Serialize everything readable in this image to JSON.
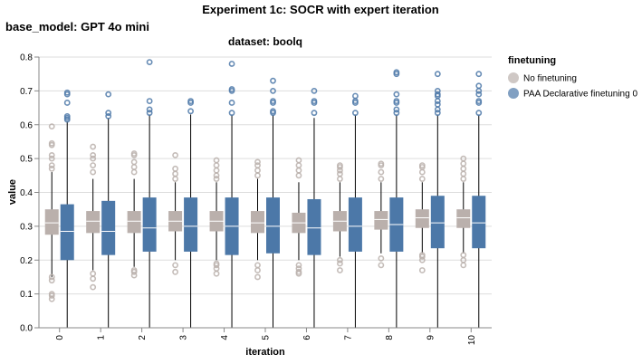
{
  "chart_data": {
    "type": "box",
    "title": "Experiment 1c: SOCR with expert iteration",
    "row_facet_label": "base_model: GPT 4o mini",
    "column_facet_label": "dataset: boolq",
    "xlabel": "iteration",
    "ylabel": "value",
    "ylim": [
      0,
      0.8
    ],
    "y_ticks": [
      "0.0",
      "0.1",
      "0.2",
      "0.3",
      "0.4",
      "0.5",
      "0.6",
      "0.7",
      "0.8"
    ],
    "grid": true,
    "legend_title": "finetuning",
    "legend_position": "right",
    "categories": [
      "0",
      "1",
      "2",
      "3",
      "4",
      "5",
      "6",
      "7",
      "8",
      "9",
      "10"
    ],
    "series": [
      {
        "name": "No finetuning",
        "color": "#bab0ac",
        "boxes": [
          {
            "min": 0.15,
            "q1": 0.275,
            "median": 0.31,
            "q3": 0.35,
            "max": 0.46,
            "outliers": [
              0.085,
              0.095,
              0.1,
              0.14,
              0.15,
              0.47,
              0.48,
              0.5,
              0.51,
              0.54,
              0.545,
              0.595
            ]
          },
          {
            "min": 0.17,
            "q1": 0.28,
            "median": 0.315,
            "q3": 0.345,
            "max": 0.44,
            "outliers": [
              0.12,
              0.145,
              0.16,
              0.46,
              0.48,
              0.5,
              0.51,
              0.535
            ]
          },
          {
            "min": 0.18,
            "q1": 0.28,
            "median": 0.315,
            "q3": 0.345,
            "max": 0.44,
            "outliers": [
              0.155,
              0.165,
              0.17,
              0.46,
              0.475,
              0.49,
              0.51,
              0.515
            ]
          },
          {
            "min": 0.2,
            "q1": 0.285,
            "median": 0.315,
            "q3": 0.345,
            "max": 0.43,
            "outliers": [
              0.165,
              0.185,
              0.44,
              0.455,
              0.47,
              0.51
            ]
          },
          {
            "min": 0.2,
            "q1": 0.285,
            "median": 0.315,
            "q3": 0.345,
            "max": 0.43,
            "outliers": [
              0.16,
              0.175,
              0.185,
              0.19,
              0.44,
              0.45,
              0.465,
              0.48,
              0.495
            ]
          },
          {
            "min": 0.2,
            "q1": 0.28,
            "median": 0.31,
            "q3": 0.345,
            "max": 0.44,
            "outliers": [
              0.15,
              0.17,
              0.185,
              0.45,
              0.465,
              0.48,
              0.49
            ]
          },
          {
            "min": 0.2,
            "q1": 0.28,
            "median": 0.31,
            "q3": 0.34,
            "max": 0.43,
            "outliers": [
              0.16,
              0.165,
              0.175,
              0.185,
              0.45,
              0.465,
              0.48,
              0.495
            ]
          },
          {
            "min": 0.21,
            "q1": 0.285,
            "median": 0.315,
            "q3": 0.345,
            "max": 0.43,
            "outliers": [
              0.17,
              0.19,
              0.2,
              0.44,
              0.455,
              0.465,
              0.475,
              0.48
            ]
          },
          {
            "min": 0.22,
            "q1": 0.29,
            "median": 0.32,
            "q3": 0.345,
            "max": 0.43,
            "outliers": [
              0.185,
              0.205,
              0.44,
              0.46,
              0.48,
              0.485
            ]
          },
          {
            "min": 0.22,
            "q1": 0.295,
            "median": 0.325,
            "q3": 0.35,
            "max": 0.43,
            "outliers": [
              0.17,
              0.2,
              0.21,
              0.215,
              0.44,
              0.46,
              0.475,
              0.48
            ]
          },
          {
            "min": 0.22,
            "q1": 0.295,
            "median": 0.325,
            "q3": 0.35,
            "max": 0.43,
            "outliers": [
              0.185,
              0.2,
              0.215,
              0.44,
              0.455,
              0.47,
              0.485,
              0.5
            ]
          }
        ]
      },
      {
        "name": "PAA Declarative finetuning 0",
        "color": "#4c78a8",
        "boxes": [
          {
            "min": 0.0,
            "q1": 0.2,
            "median": 0.285,
            "q3": 0.365,
            "max": 0.61,
            "outliers": [
              0.615,
              0.62,
              0.625,
              0.665,
              0.69,
              0.695
            ]
          },
          {
            "min": 0.0,
            "q1": 0.215,
            "median": 0.285,
            "q3": 0.375,
            "max": 0.62,
            "outliers": [
              0.625,
              0.635,
              0.69
            ]
          },
          {
            "min": 0.0,
            "q1": 0.225,
            "median": 0.295,
            "q3": 0.385,
            "max": 0.63,
            "outliers": [
              0.635,
              0.645,
              0.67,
              0.785
            ]
          },
          {
            "min": 0.0,
            "q1": 0.225,
            "median": 0.3,
            "q3": 0.385,
            "max": 0.63,
            "outliers": [
              0.64,
              0.665,
              0.67
            ]
          },
          {
            "min": 0.0,
            "q1": 0.215,
            "median": 0.3,
            "q3": 0.385,
            "max": 0.63,
            "outliers": [
              0.635,
              0.665,
              0.7,
              0.705,
              0.78
            ]
          },
          {
            "min": 0.0,
            "q1": 0.22,
            "median": 0.3,
            "q3": 0.385,
            "max": 0.63,
            "outliers": [
              0.635,
              0.64,
              0.665,
              0.67,
              0.7,
              0.73
            ]
          },
          {
            "min": 0.0,
            "q1": 0.215,
            "median": 0.295,
            "q3": 0.38,
            "max": 0.62,
            "outliers": [
              0.635,
              0.665,
              0.67,
              0.7
            ]
          },
          {
            "min": 0.0,
            "q1": 0.225,
            "median": 0.3,
            "q3": 0.385,
            "max": 0.63,
            "outliers": [
              0.635,
              0.665,
              0.67,
              0.685
            ]
          },
          {
            "min": 0.0,
            "q1": 0.225,
            "median": 0.305,
            "q3": 0.385,
            "max": 0.63,
            "outliers": [
              0.635,
              0.645,
              0.665,
              0.67,
              0.69,
              0.75,
              0.755
            ]
          },
          {
            "min": 0.0,
            "q1": 0.235,
            "median": 0.31,
            "q3": 0.39,
            "max": 0.63,
            "outliers": [
              0.635,
              0.645,
              0.66,
              0.67,
              0.685,
              0.69,
              0.7,
              0.75
            ]
          },
          {
            "min": 0.0,
            "q1": 0.235,
            "median": 0.31,
            "q3": 0.39,
            "max": 0.63,
            "outliers": [
              0.635,
              0.665,
              0.67,
              0.69,
              0.7,
              0.715,
              0.75
            ]
          }
        ]
      }
    ]
  }
}
